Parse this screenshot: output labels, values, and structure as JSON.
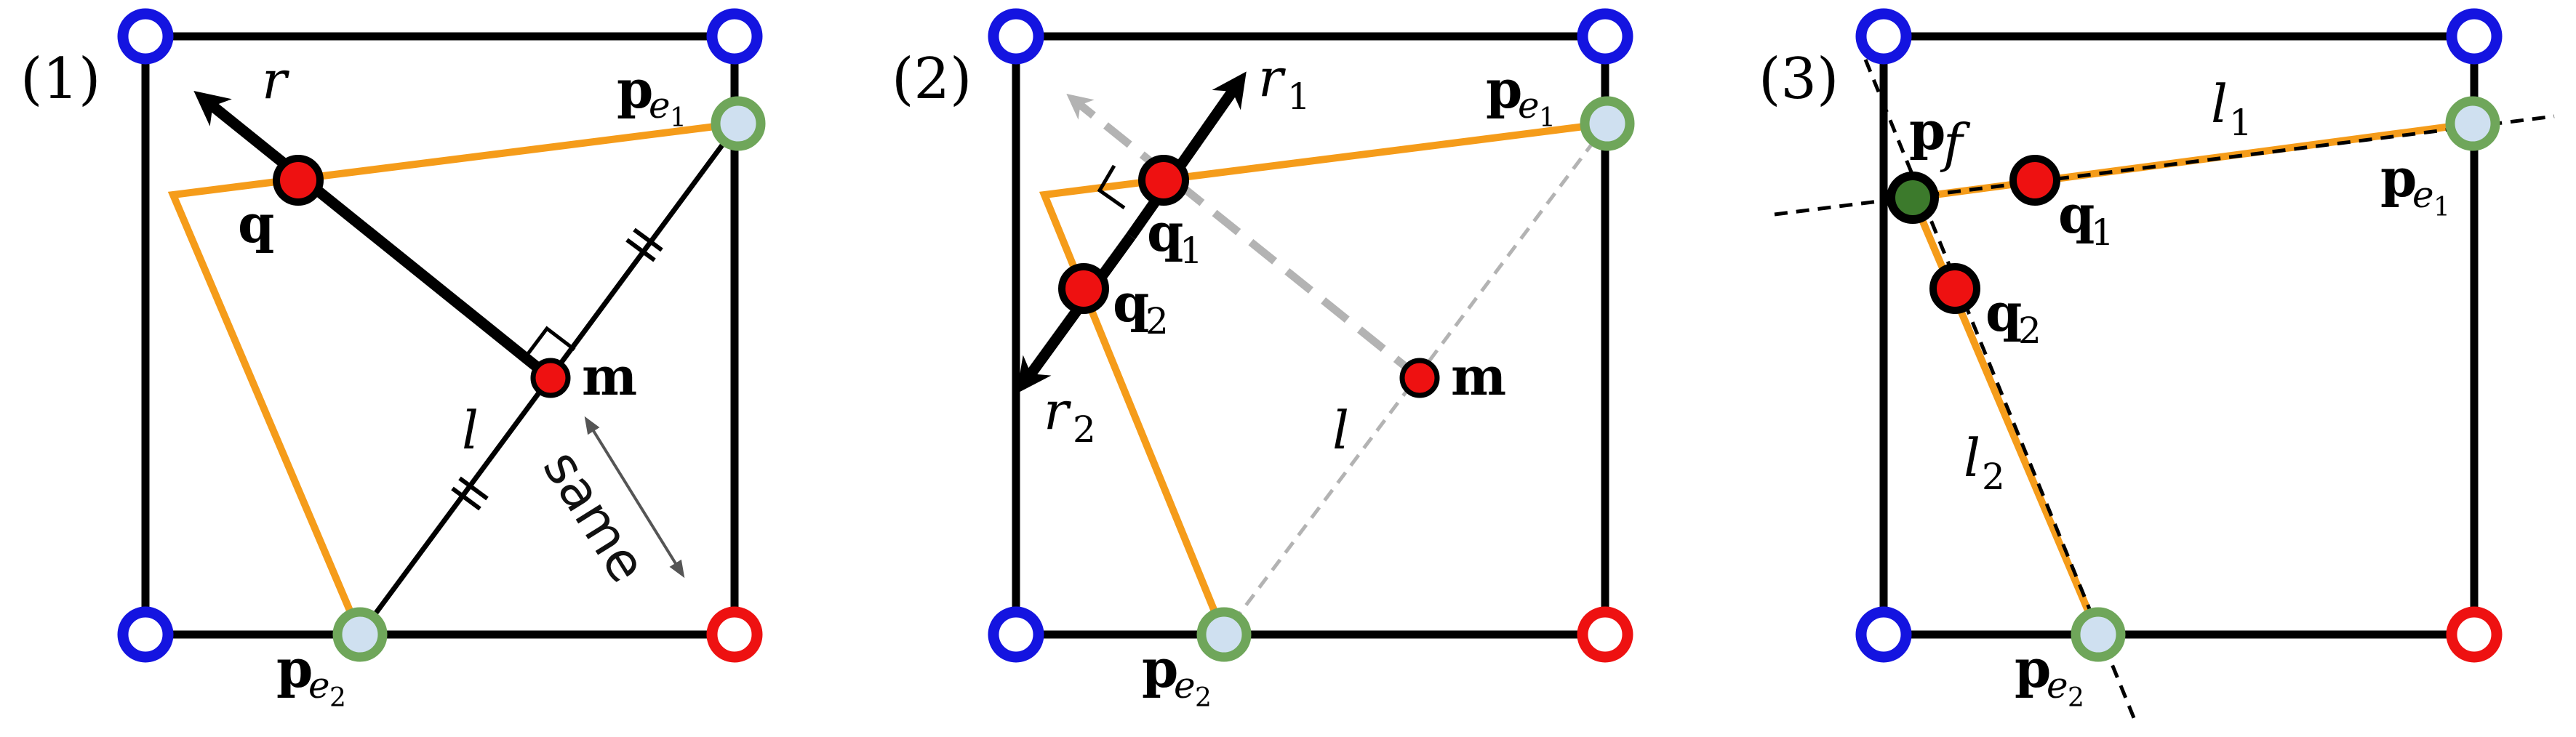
{
  "panels": [
    {
      "label": "(1)",
      "texts": {
        "r": "r",
        "q": "q",
        "m": "m",
        "l": "l",
        "same": "same",
        "pe1_base": "p",
        "pe1_sub": "e",
        "pe1_subsub": "1",
        "pe2_base": "p",
        "pe2_sub": "e",
        "pe2_subsub": "2"
      }
    },
    {
      "label": "(2)",
      "texts": {
        "r1_base": "r",
        "r1_sub": "1",
        "r2_base": "r",
        "r2_sub": "2",
        "q1_base": "q",
        "q1_sub": "1",
        "q2_base": "q",
        "q2_sub": "2",
        "m": "m",
        "l": "l",
        "pe1_base": "p",
        "pe1_sub": "e",
        "pe1_subsub": "1",
        "pe2_base": "p",
        "pe2_sub": "e",
        "pe2_subsub": "2"
      }
    },
    {
      "label": "(3)",
      "texts": {
        "pf_base": "p",
        "pf_sub": "f",
        "l1_base": "l",
        "l1_sub": "1",
        "l2_base": "l",
        "l2_sub": "2",
        "q1_base": "q",
        "q1_sub": "1",
        "q2_base": "q",
        "q2_sub": "2",
        "pe1_base": "p",
        "pe1_sub": "e",
        "pe1_subsub": "1",
        "pe2_base": "p",
        "pe2_sub": "e",
        "pe2_subsub": "2"
      }
    }
  ],
  "colors": {
    "square_edge": "#000000",
    "polygon": "#f59c1a",
    "corner_outside": "#1414e0",
    "corner_inside": "#ee1111",
    "edge_vertex_ring": "#6fa65a",
    "edge_vertex_fill": "#cfe0f0",
    "sample_point": "#ee1111",
    "feature_point": "#3c7a2c",
    "construction_line": "#b3b3b3",
    "arrow": "#000000"
  }
}
